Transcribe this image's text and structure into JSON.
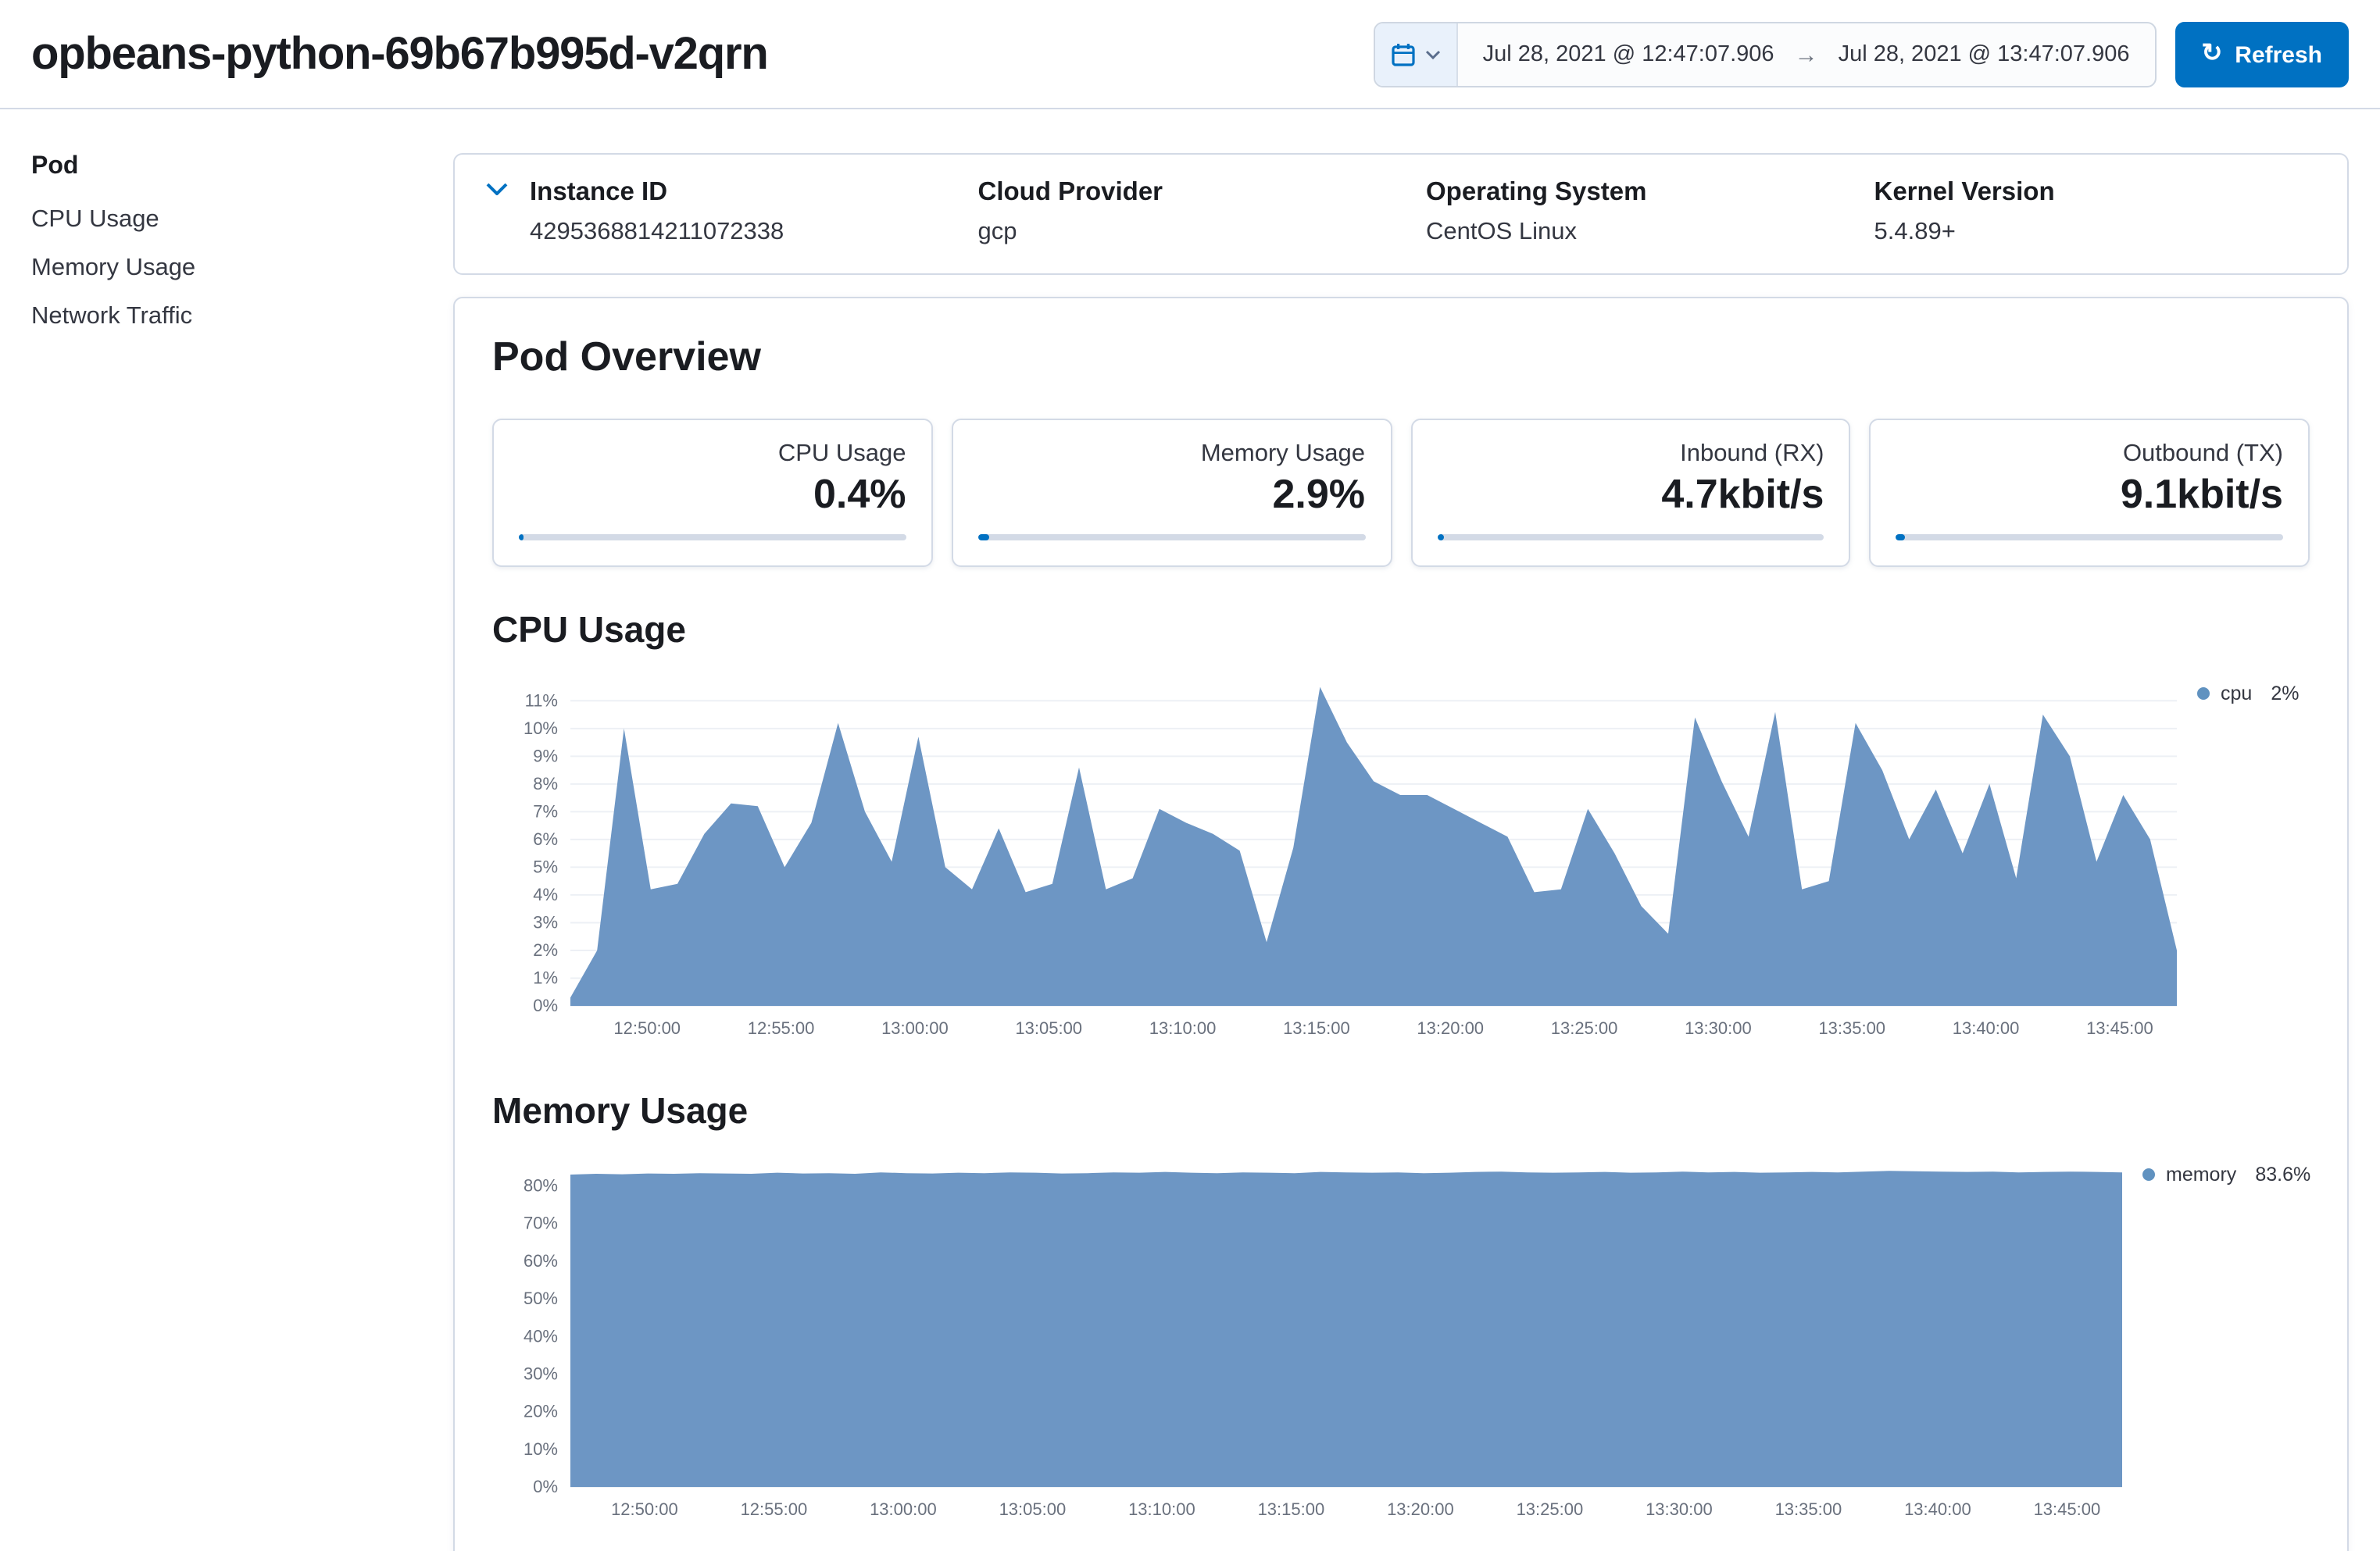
{
  "header": {
    "title": "opbeans-python-69b67b995d-v2qrn",
    "date_start": "Jul 28, 2021 @ 12:47:07.906",
    "date_end": "Jul 28, 2021 @ 13:47:07.906",
    "range_arrow": "→",
    "refresh_label": "Refresh",
    "refresh_icon": "↻"
  },
  "sidebar": {
    "heading": "Pod",
    "items": [
      {
        "label": "CPU Usage"
      },
      {
        "label": "Memory Usage"
      },
      {
        "label": "Network Traffic"
      }
    ]
  },
  "metadata": {
    "fields": [
      {
        "label": "Instance ID",
        "value": "4295368814211072338"
      },
      {
        "label": "Cloud Provider",
        "value": "gcp"
      },
      {
        "label": "Operating System",
        "value": "CentOS Linux"
      },
      {
        "label": "Kernel Version",
        "value": "5.4.89+"
      }
    ]
  },
  "overview": {
    "title": "Pod Overview",
    "metrics": [
      {
        "label": "CPU Usage",
        "value": "0.4%",
        "bar_pct": 0.8
      },
      {
        "label": "Memory Usage",
        "value": "2.9%",
        "bar_pct": 2.9
      },
      {
        "label": "Inbound (RX)",
        "value": "4.7kbit/s",
        "bar_pct": 2.0
      },
      {
        "label": "Outbound (TX)",
        "value": "9.1kbit/s",
        "bar_pct": 2.4
      }
    ]
  },
  "sections": {
    "cpu_title": "CPU Usage",
    "memory_title": "Memory Usage"
  },
  "chart_data": [
    {
      "type": "area",
      "title": "CPU Usage",
      "xlabel": "",
      "ylabel": "",
      "color": "#6d96c4",
      "grid": true,
      "legend_position": "right",
      "legend": {
        "name": "cpu",
        "value": "2%"
      },
      "x_domain": [
        "12:47:08",
        "13:47:08"
      ],
      "x_ticks": [
        "12:50:00",
        "12:55:00",
        "13:00:00",
        "13:05:00",
        "13:10:00",
        "13:15:00",
        "13:20:00",
        "13:25:00",
        "13:30:00",
        "13:35:00",
        "13:40:00",
        "13:45:00"
      ],
      "y_ticks": [
        "0%",
        "1%",
        "2%",
        "3%",
        "4%",
        "5%",
        "6%",
        "7%",
        "8%",
        "9%",
        "10%",
        "11%"
      ],
      "ylim": [
        0,
        11.6
      ],
      "values": [
        0.3,
        2.0,
        10.0,
        4.2,
        4.4,
        6.2,
        7.3,
        7.2,
        5.0,
        6.6,
        10.2,
        7.0,
        5.2,
        9.7,
        5.0,
        4.2,
        6.4,
        4.1,
        4.4,
        8.6,
        4.2,
        4.6,
        7.1,
        6.6,
        6.2,
        5.6,
        2.3,
        5.7,
        11.5,
        9.5,
        8.1,
        7.6,
        7.6,
        7.1,
        6.6,
        6.1,
        4.1,
        4.2,
        7.1,
        5.5,
        3.6,
        2.6,
        10.4,
        8.1,
        6.1,
        10.6,
        4.2,
        4.5,
        10.2,
        8.5,
        6.0,
        7.8,
        5.5,
        8.0,
        4.6,
        10.5,
        9.0,
        5.2,
        7.6,
        6.0,
        2.0
      ]
    },
    {
      "type": "area",
      "title": "Memory Usage",
      "xlabel": "",
      "ylabel": "",
      "color": "#6d96c4",
      "grid": true,
      "legend_position": "right",
      "legend": {
        "name": "memory",
        "value": "83.6%"
      },
      "x_domain": [
        "12:47:08",
        "13:47:08"
      ],
      "x_ticks": [
        "12:50:00",
        "12:55:00",
        "13:00:00",
        "13:05:00",
        "13:10:00",
        "13:15:00",
        "13:20:00",
        "13:25:00",
        "13:30:00",
        "13:35:00",
        "13:40:00",
        "13:45:00"
      ],
      "y_ticks": [
        "0%",
        "10%",
        "20%",
        "30%",
        "40%",
        "50%",
        "60%",
        "70%",
        "80%"
      ],
      "ylim": [
        0,
        85.5
      ],
      "values": [
        83.0,
        83.2,
        83.1,
        83.3,
        83.2,
        83.4,
        83.3,
        83.2,
        83.5,
        83.3,
        83.4,
        83.2,
        83.6,
        83.4,
        83.3,
        83.5,
        83.4,
        83.6,
        83.5,
        83.3,
        83.4,
        83.6,
        83.5,
        83.7,
        83.5,
        83.4,
        83.6,
        83.5,
        83.4,
        83.7,
        83.6,
        83.5,
        83.6,
        83.4,
        83.5,
        83.7,
        83.8,
        83.6,
        83.5,
        83.6,
        83.7,
        83.5,
        83.6,
        83.8,
        83.6,
        83.7,
        83.5,
        83.6,
        83.7,
        83.6,
        83.8,
        84.0,
        83.9,
        83.8,
        83.7,
        83.8,
        83.6,
        83.7,
        83.8,
        83.7,
        83.6
      ]
    }
  ]
}
